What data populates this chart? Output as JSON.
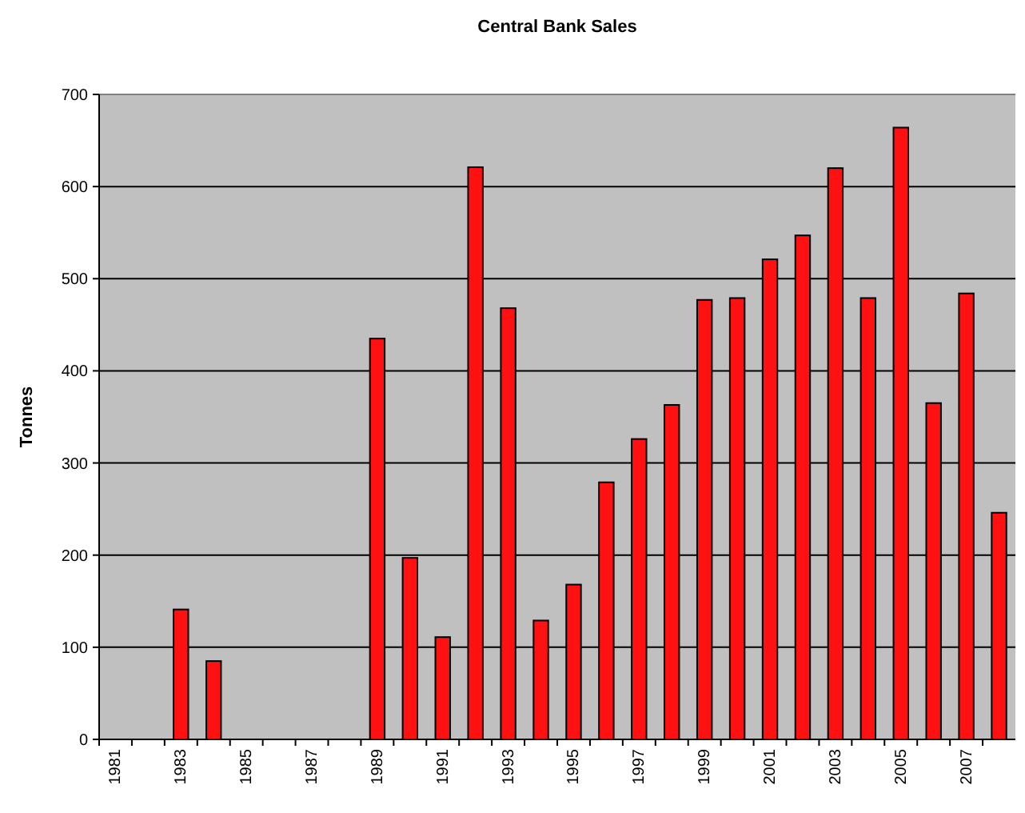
{
  "chart_data": {
    "type": "bar",
    "title": "Central Bank Sales",
    "ylabel": "Tonnes",
    "categories": [
      "1981",
      null,
      "1983",
      null,
      "1985",
      null,
      "1987",
      null,
      "1989",
      null,
      "1991",
      null,
      "1993",
      null,
      "1995",
      null,
      "1997",
      null,
      "1999",
      null,
      "2001",
      null,
      "2003",
      null,
      "2005",
      null,
      "2007",
      null
    ],
    "values": [
      null,
      null,
      141,
      85,
      null,
      null,
      null,
      null,
      435,
      197,
      111,
      621,
      468,
      129,
      168,
      279,
      326,
      363,
      477,
      479,
      521,
      547,
      620,
      479,
      664,
      365,
      484,
      246
    ],
    "color": "#ff1111",
    "ylim": [
      0,
      700
    ],
    "yticks": [
      0,
      100,
      200,
      300,
      400,
      500,
      600,
      700
    ],
    "grid": "y"
  }
}
